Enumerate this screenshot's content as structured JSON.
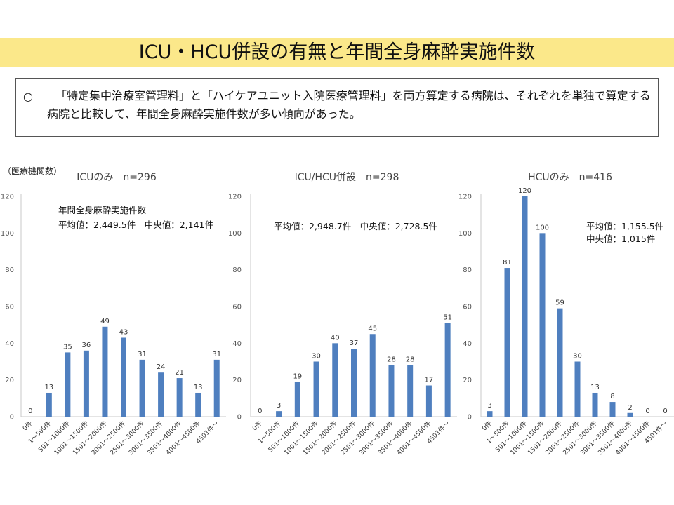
{
  "header": {
    "title": "ICU・HCU併設の有無と年間全身麻酔実施件数"
  },
  "summary": {
    "bullet": "○",
    "text": "「特定集中治療室管理料」と「ハイケアユニット入院医療管理料」を両方算定する病院は、それぞれを単独で算定する病院と比較して、年間全身麻酔実施件数が多い傾向があった。"
  },
  "ylabel_note": "（医療機関数）",
  "chart_data": [
    {
      "type": "bar",
      "title": "ICUのみ　n=296",
      "categories": [
        "0件",
        "1～500件",
        "501～1000件",
        "1001～1500件",
        "1501～2000件",
        "2001～2500件",
        "2501～3000件",
        "3001～3500件",
        "3501～4000件",
        "4001～4500件",
        "4501件～"
      ],
      "values": [
        0,
        13,
        35,
        36,
        49,
        43,
        31,
        24,
        21,
        13,
        31
      ],
      "ylim": [
        0,
        120
      ],
      "yticks": [
        0,
        20,
        40,
        60,
        80,
        100,
        120
      ],
      "annotations": [
        "年間全身麻酔実施件数",
        "平均値：2,449.5件　中央値：2,141件"
      ],
      "color": "#4f7fbf"
    },
    {
      "type": "bar",
      "title": "ICU/HCU併設　n=298",
      "categories": [
        "0件",
        "1～500件",
        "501～1000件",
        "1001～1500件",
        "1501～2000件",
        "2001～2500件",
        "2501～3000件",
        "3001～3500件",
        "3501～4000件",
        "4001～4500件",
        "4501件～"
      ],
      "values": [
        0,
        3,
        19,
        30,
        40,
        37,
        45,
        28,
        28,
        17,
        51
      ],
      "ylim": [
        0,
        120
      ],
      "yticks": [
        0,
        20,
        40,
        60,
        80,
        100,
        120
      ],
      "annotations": [
        "平均値：2,948.7件　中央値：2,728.5件"
      ],
      "color": "#4f7fbf"
    },
    {
      "type": "bar",
      "title": "HCUのみ　n=416",
      "categories": [
        "0件",
        "1～500件",
        "501～1000件",
        "1001～1500件",
        "1501～2000件",
        "2001～2500件",
        "2501～3000件",
        "3001～3500件",
        "3501～4000件",
        "4001～4500件",
        "4501件～"
      ],
      "values": [
        3,
        81,
        120,
        100,
        59,
        30,
        13,
        8,
        2,
        0,
        0
      ],
      "ylim": [
        0,
        120
      ],
      "yticks": [
        0,
        20,
        40,
        60,
        80,
        100,
        120
      ],
      "annotations": [
        "平均値：1,155.5件",
        "中央値：1,015件"
      ],
      "color": "#4f7fbf"
    }
  ]
}
